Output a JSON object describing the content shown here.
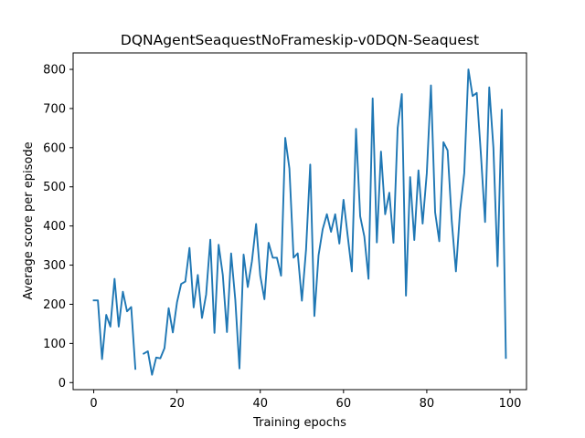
{
  "chart_data": {
    "type": "line",
    "title": "DQNAgentSeaquestNoFrameskip-v0DQN-Seaquest",
    "xlabel": "Training epochs",
    "ylabel": "Average score per episode",
    "xlim": [
      -4.95,
      103.95
    ],
    "ylim": [
      -18,
      842
    ],
    "xticks": [
      0,
      20,
      40,
      60,
      80,
      100
    ],
    "yticks": [
      0,
      100,
      200,
      300,
      400,
      500,
      600,
      700,
      800
    ],
    "grid": false,
    "legend": "none",
    "line_color": "#1f77b4",
    "series": [
      {
        "x": [
          0,
          1,
          2,
          3,
          4,
          5,
          6,
          7,
          8,
          9,
          10,
          11,
          12,
          13,
          14,
          15,
          16,
          17,
          18,
          19,
          20,
          21,
          22,
          23,
          24,
          25,
          26,
          27,
          28,
          29,
          30,
          31,
          32,
          33,
          34,
          35,
          36,
          37,
          38,
          39,
          40,
          41,
          42,
          43,
          44,
          45,
          46,
          47,
          48,
          49,
          50,
          51,
          52,
          53,
          54,
          55,
          56,
          57,
          58,
          59,
          60,
          61,
          62,
          63,
          64,
          65,
          66,
          67,
          68,
          69,
          70,
          71,
          72,
          73,
          74,
          75,
          76,
          77,
          78,
          79,
          80,
          81,
          82,
          83,
          84,
          85,
          86,
          87,
          88,
          89,
          90,
          91,
          92,
          93,
          94,
          95,
          96,
          97,
          98,
          99
        ],
        "values": [
          210,
          210,
          60,
          173,
          143,
          265,
          143,
          232,
          182,
          193,
          35,
          null,
          74,
          80,
          20,
          64,
          62,
          88,
          190,
          128,
          205,
          252,
          258,
          344,
          192,
          275,
          165,
          225,
          365,
          127,
          352,
          275,
          129,
          330,
          212,
          36,
          327,
          244,
          310,
          405,
          273,
          213,
          357,
          319,
          319,
          273,
          625,
          547,
          319,
          330,
          209,
          340,
          557,
          170,
          325,
          392,
          430,
          385,
          430,
          355,
          467,
          375,
          284,
          648,
          425,
          373,
          265,
          726,
          358,
          590,
          430,
          485,
          357,
          650,
          737,
          222,
          525,
          364,
          542,
          406,
          535,
          759,
          435,
          361,
          614,
          593,
          412,
          284,
          440,
          535,
          800,
          732,
          740,
          583,
          410,
          754,
          600,
          297,
          697,
          63
        ]
      }
    ]
  }
}
